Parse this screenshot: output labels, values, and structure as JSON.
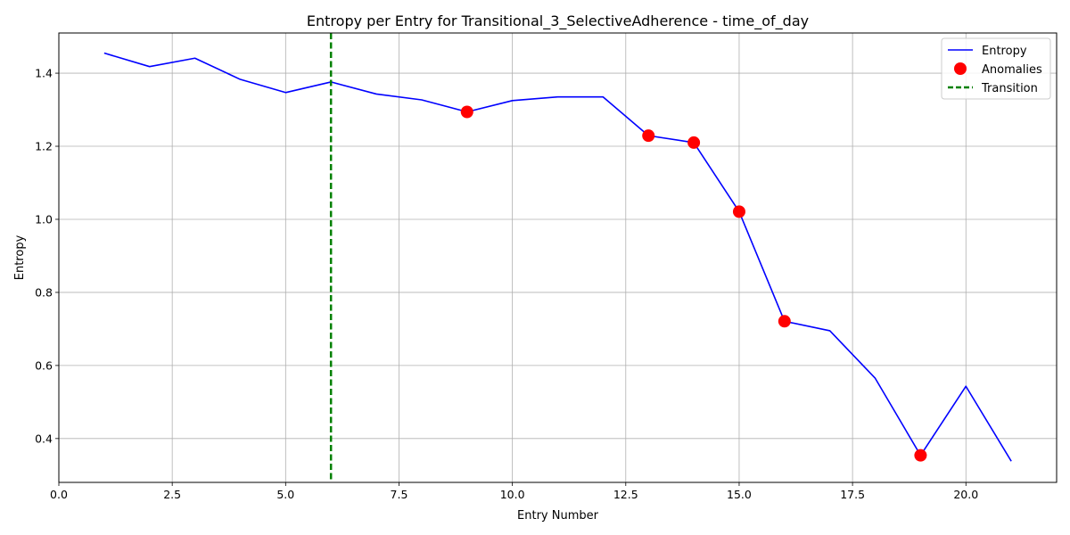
{
  "chart_data": {
    "type": "line",
    "title": "Entropy per Entry for Transitional_3_SelectiveAdherence - time_of_day",
    "xlabel": "Entry Number",
    "ylabel": "Entropy",
    "xlim": [
      0,
      22
    ],
    "ylim": [
      0.28,
      1.51
    ],
    "xticks": [
      0.0,
      2.5,
      5.0,
      7.5,
      10.0,
      12.5,
      15.0,
      17.5,
      20.0
    ],
    "xtick_labels": [
      "0.0",
      "2.5",
      "5.0",
      "7.5",
      "10.0",
      "12.5",
      "15.0",
      "17.5",
      "20.0"
    ],
    "yticks": [
      0.4,
      0.6,
      0.8,
      1.0,
      1.2,
      1.4
    ],
    "ytick_labels": [
      "0.4",
      "0.6",
      "0.8",
      "1.0",
      "1.2",
      "1.4"
    ],
    "grid": true,
    "legend_position": "top-right",
    "series": [
      {
        "name": "Entropy",
        "kind": "line",
        "color": "#0000ff",
        "x": [
          1,
          2,
          3,
          4,
          5,
          6,
          7,
          8,
          9,
          10,
          11,
          12,
          13,
          14,
          15,
          16,
          17,
          18,
          19,
          20,
          21
        ],
        "y": [
          1.455,
          1.418,
          1.441,
          1.383,
          1.347,
          1.376,
          1.343,
          1.327,
          1.294,
          1.325,
          1.335,
          1.335,
          1.229,
          1.21,
          1.021,
          0.721,
          0.695,
          0.565,
          0.354,
          0.543,
          0.338
        ]
      },
      {
        "name": "Anomalies",
        "kind": "scatter",
        "color": "#ff0000",
        "x": [
          9,
          13,
          14,
          15,
          16,
          19
        ],
        "y": [
          1.294,
          1.229,
          1.21,
          1.021,
          0.721,
          0.354
        ]
      },
      {
        "name": "Transition",
        "kind": "vline",
        "color": "#008000",
        "x": [
          6
        ]
      }
    ]
  }
}
